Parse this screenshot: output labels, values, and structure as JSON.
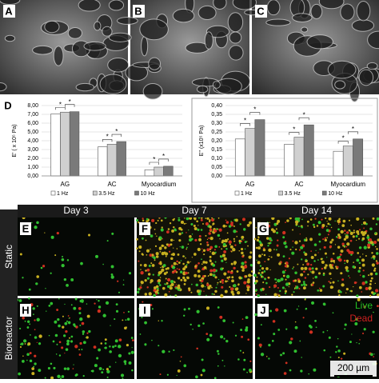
{
  "panels": {
    "a": "A",
    "b": "B",
    "c": "C",
    "d": "D",
    "e": "E",
    "f": "F",
    "g": "G",
    "h": "H",
    "i": "I",
    "j": "J"
  },
  "days": [
    "Day 3",
    "Day 7",
    "Day 14"
  ],
  "rows": [
    "Static",
    "Bioreactor"
  ],
  "stain_legend": {
    "live": "Live",
    "dead": "Dead"
  },
  "scale_bar": "200 µm",
  "chart_data": [
    {
      "type": "bar",
      "y_label": "E' ( x 10⁵ Pa)",
      "significance": "*",
      "categories": [
        "AG",
        "AC",
        "Myocardium"
      ],
      "series": [
        {
          "name": "1 Hz",
          "color": "#ffffff",
          "values": [
            7.05,
            3.3,
            0.7
          ]
        },
        {
          "name": "3.5 Hz",
          "color": "#d0d0d0",
          "values": [
            7.25,
            3.6,
            1.0
          ]
        },
        {
          "name": "10 Hz",
          "color": "#7a7a7a",
          "values": [
            7.3,
            3.9,
            1.1
          ]
        }
      ],
      "ylim": [
        0,
        8
      ],
      "yticks": [
        {
          "value": 0,
          "label": "0,00"
        },
        {
          "value": 1,
          "label": "1,00"
        },
        {
          "value": 2,
          "label": "2,00"
        },
        {
          "value": 3,
          "label": "3,00"
        },
        {
          "value": 4,
          "label": "4,00"
        },
        {
          "value": 5,
          "label": "5,00"
        },
        {
          "value": 6,
          "label": "6,00"
        },
        {
          "value": 7,
          "label": "7,00"
        },
        {
          "value": 8,
          "label": "8,00"
        }
      ],
      "grid": true
    },
    {
      "type": "bar",
      "y_label": "E'' (x10⁵ Pa)",
      "significance": "*",
      "categories": [
        "AG",
        "AC",
        "Myocardium"
      ],
      "series": [
        {
          "name": "1 Hz",
          "color": "#ffffff",
          "values": [
            0.21,
            0.18,
            0.14
          ]
        },
        {
          "name": "3.5 Hz",
          "color": "#d0d0d0",
          "values": [
            0.27,
            0.22,
            0.17
          ]
        },
        {
          "name": "10 Hz",
          "color": "#7a7a7a",
          "values": [
            0.32,
            0.29,
            0.21
          ]
        }
      ],
      "ylim": [
        0,
        0.4
      ],
      "yticks": [
        {
          "value": 0,
          "label": "0,00"
        },
        {
          "value": 0.05,
          "label": "0,05"
        },
        {
          "value": 0.1,
          "label": "0,10"
        },
        {
          "value": 0.15,
          "label": "0,15"
        },
        {
          "value": 0.2,
          "label": "0,20"
        },
        {
          "value": 0.25,
          "label": "0,25"
        },
        {
          "value": 0.3,
          "label": "0,30"
        },
        {
          "value": 0.35,
          "label": "0,35"
        },
        {
          "value": 0.4,
          "label": "0,40"
        }
      ],
      "grid": true
    }
  ]
}
